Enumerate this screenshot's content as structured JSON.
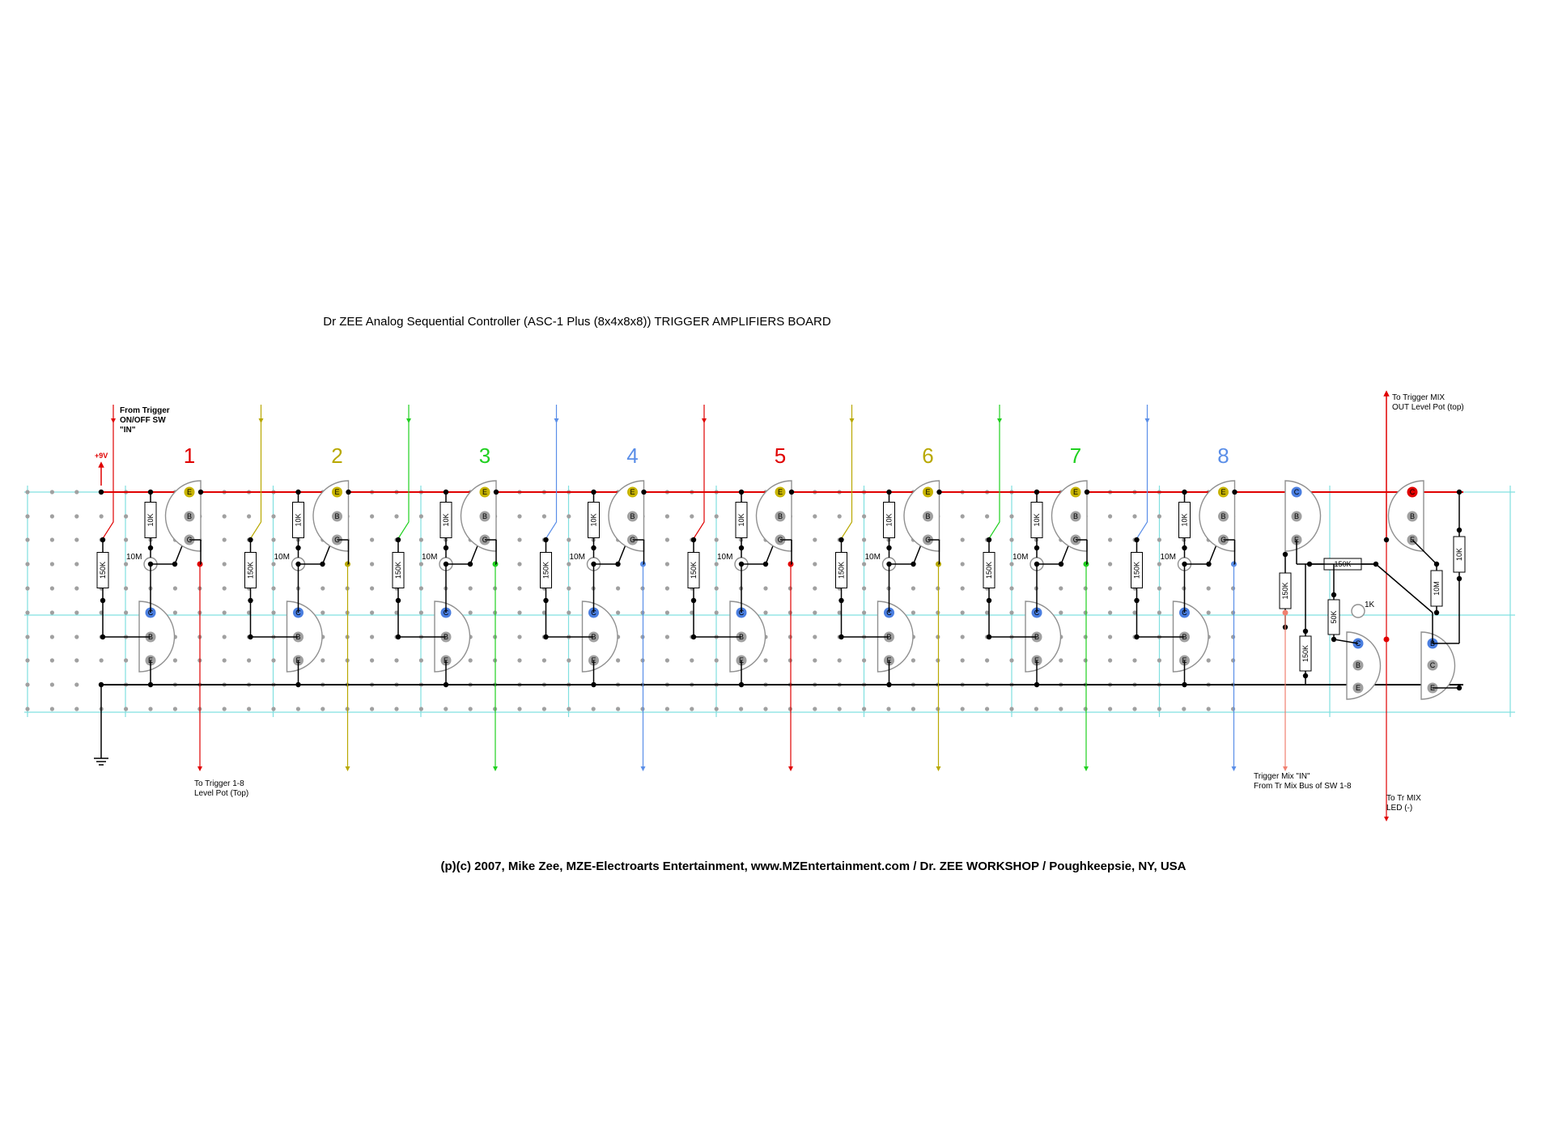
{
  "title": "Dr ZEE Analog Sequential Controller (ASC-1 Plus (8x4x8x8))  TRIGGER AMPLIFIERS BOARD",
  "footer": "(p)(c) 2007, Mike Zee, MZE-Electroarts Entertainment, www.MZEntertainment.com / Dr. ZEE WORKSHOP / Poughkeepsie, NY, USA",
  "colors": {
    "grid": "#80e0e0",
    "hole": "#a0a0a0",
    "power_rail": "#e00000",
    "ground_rail": "#000000",
    "pin_emitter_top": "#c8b400",
    "pin_collector": "#4a7ee0",
    "pin_other": "#a0a0a0"
  },
  "labels": {
    "power": "+9V",
    "from_trigger": [
      "From Trigger",
      "ON/OFF SW",
      "\"IN\""
    ],
    "to_trigger_level": [
      "To Trigger 1-8",
      "Level Pot (Top)"
    ],
    "trigger_mix_in": [
      "Trigger Mix \"IN\"",
      "From Tr Mix Bus of SW 1-8"
    ],
    "to_trigger_mix_out": [
      "To Trigger MIX",
      "OUT Level Pot (top)"
    ],
    "to_tr_mix_led": [
      "To Tr MIX",
      "LED (-)"
    ]
  },
  "channels": [
    {
      "number": "1",
      "color": "#e00000"
    },
    {
      "number": "2",
      "color": "#b8a800"
    },
    {
      "number": "3",
      "color": "#20d020"
    },
    {
      "number": "4",
      "color": "#5a8ee8"
    },
    {
      "number": "5",
      "color": "#e00000"
    },
    {
      "number": "6",
      "color": "#b8a800"
    },
    {
      "number": "7",
      "color": "#20d020"
    },
    {
      "number": "8",
      "color": "#5a8ee8"
    }
  ],
  "channel_parts": {
    "r_top": "10K",
    "r_left": "150K",
    "cap": "10M",
    "pins_top": [
      "E",
      "B",
      "C"
    ],
    "pins_bottom": [
      "C",
      "B",
      "E"
    ]
  },
  "mixer_parts": {
    "r1": "150K",
    "r2": "150K",
    "r3": "150K",
    "pot": "50K",
    "r_1k": "1K",
    "r_10m": "10M",
    "r_10k": "10K",
    "q1_pins": [
      "C",
      "B",
      "E"
    ],
    "q2_pins": [
      "C",
      "B",
      "E"
    ],
    "q3_pins": [
      "B",
      "C"
    ],
    "q4_pins": [
      "C",
      "B",
      "E"
    ]
  }
}
